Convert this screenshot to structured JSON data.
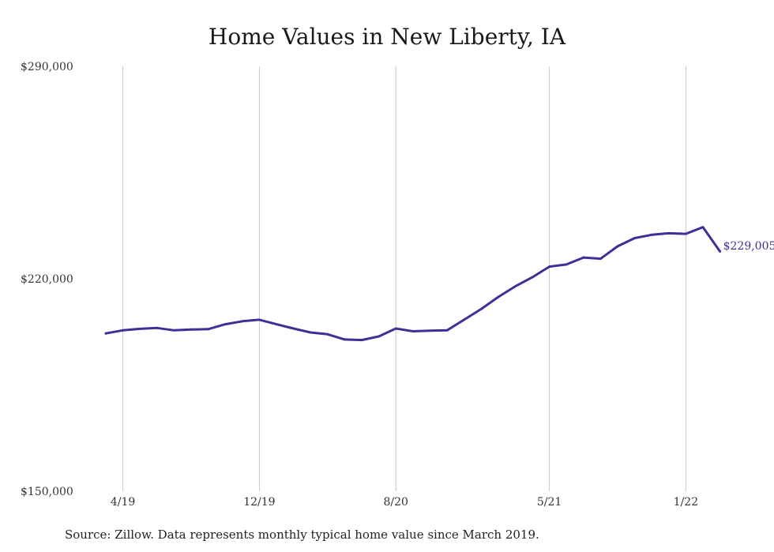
{
  "chart_data": {
    "type": "line",
    "title": "Home Values in New Liberty, IA",
    "xlabel": "",
    "ylabel": "",
    "ylim": [
      150000,
      290000
    ],
    "y_ticks": [
      "$290,000",
      "$220,000",
      "$150,000"
    ],
    "y_tick_values": [
      290000,
      220000,
      150000
    ],
    "x_tick_labels": [
      "4/19",
      "12/19",
      "8/20",
      "5/21",
      "1/22"
    ],
    "x_tick_dates": [
      "2019-04",
      "2019-12",
      "2020-08",
      "2021-05",
      "2022-01"
    ],
    "grid": "vertical lines at x ticks",
    "line_color": "#3b3196",
    "series": [
      {
        "x": [
          "2019-03",
          "2019-04",
          "2019-05",
          "2019-06",
          "2019-07",
          "2019-08",
          "2019-09",
          "2019-10",
          "2019-11",
          "2019-12",
          "2020-01",
          "2020-02",
          "2020-03",
          "2020-04",
          "2020-05",
          "2020-06",
          "2020-07",
          "2020-08",
          "2020-09",
          "2020-10",
          "2020-11",
          "2020-12",
          "2021-01",
          "2021-02",
          "2021-03",
          "2021-04",
          "2021-05",
          "2021-06",
          "2021-07",
          "2021-08",
          "2021-09",
          "2021-10",
          "2021-11",
          "2021-12",
          "2022-01",
          "2022-02",
          "2022-03"
        ],
        "values": [
          202000,
          203000,
          203500,
          203800,
          203000,
          203300,
          203400,
          205000,
          206000,
          206500,
          205000,
          203600,
          202300,
          201700,
          200000,
          199800,
          201000,
          203600,
          202700,
          202900,
          203000,
          206500,
          210000,
          214000,
          217500,
          220500,
          224000,
          224700,
          227000,
          226600,
          230700,
          233400,
          234500,
          235000,
          234800,
          237000,
          229005
        ],
        "end_label": "$229,005"
      }
    ]
  },
  "source_note": "Source: Zillow. Data represents monthly typical home value since March 2019."
}
